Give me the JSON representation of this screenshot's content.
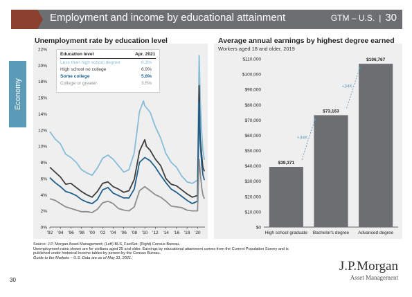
{
  "header": {
    "title": "Employment and income by educational attainment",
    "guide": "GTM – U.S.",
    "separator": "|",
    "page": "30",
    "colors": {
      "bar": "#6d6e71",
      "chevron": "#8b3f2e"
    }
  },
  "side_tab": {
    "label": "Economy",
    "color": "#5b9bb8"
  },
  "left_chart": {
    "title": "Unemployment rate by education level"
  },
  "right_chart": {
    "title": "Average annual earnings by highest degree earned",
    "subtitle": "Workers aged 18 and older, 2019"
  },
  "legend": {
    "header_label": "Education level",
    "header_value": "Apr. 2021",
    "rows": [
      {
        "label": "Less than high school degree",
        "value": "8.3%",
        "color": "#87bcd8"
      },
      {
        "label": "High school no college",
        "value": "6.9%",
        "color": "#3c3c3c"
      },
      {
        "label": "Some college",
        "value": "5.8%",
        "color": "#1f5f8b"
      },
      {
        "label": "College or greater",
        "value": "3.5%",
        "color": "#8c8c8c"
      }
    ]
  },
  "chart_data": [
    {
      "type": "line",
      "title": "Unemployment rate by education level",
      "ylim": [
        0,
        22
      ],
      "yticks": [
        "0%",
        "2%",
        "4%",
        "6%",
        "8%",
        "10%",
        "12%",
        "14%",
        "16%",
        "18%",
        "20%",
        "22%"
      ],
      "xlim": [
        1992,
        2021.4
      ],
      "xticks": [
        "'92",
        "'94",
        "'96",
        "'98",
        "'00",
        "'02",
        "'04",
        "'06",
        "'08",
        "'10",
        "'12",
        "'14",
        "'16",
        "'18",
        "'20"
      ],
      "grid": false,
      "series": [
        {
          "name": "Less than high school degree",
          "color": "#87bcd8",
          "points": [
            [
              1992,
              11.8
            ],
            [
              1993,
              10.9
            ],
            [
              1994,
              10.3
            ],
            [
              1995,
              9.0
            ],
            [
              1996,
              8.6
            ],
            [
              1997,
              8.0
            ],
            [
              1998,
              7.1
            ],
            [
              1999,
              6.7
            ],
            [
              2000,
              6.4
            ],
            [
              2001,
              7.3
            ],
            [
              2002,
              8.5
            ],
            [
              2003,
              8.9
            ],
            [
              2004,
              8.4
            ],
            [
              2005,
              7.6
            ],
            [
              2006,
              6.8
            ],
            [
              2007,
              7.1
            ],
            [
              2008,
              9.2
            ],
            [
              2009,
              14.3
            ],
            [
              2009.75,
              15.6
            ],
            [
              2010,
              15.0
            ],
            [
              2011,
              14.2
            ],
            [
              2012,
              12.4
            ],
            [
              2013,
              11.0
            ],
            [
              2014,
              9.1
            ],
            [
              2015,
              8.0
            ],
            [
              2016,
              7.4
            ],
            [
              2017,
              6.3
            ],
            [
              2018,
              5.6
            ],
            [
              2019,
              5.4
            ],
            [
              2020.0,
              5.8
            ],
            [
              2020.3,
              21.2
            ],
            [
              2020.5,
              16.0
            ],
            [
              2020.8,
              11.5
            ],
            [
              2021.0,
              9.5
            ],
            [
              2021.3,
              8.3
            ]
          ]
        },
        {
          "name": "High school no college",
          "color": "#3c3c3c",
          "points": [
            [
              1992,
              7.4
            ],
            [
              1993,
              6.8
            ],
            [
              1994,
              6.2
            ],
            [
              1995,
              5.3
            ],
            [
              1996,
              5.4
            ],
            [
              1997,
              4.9
            ],
            [
              1998,
              4.4
            ],
            [
              1999,
              4.0
            ],
            [
              2000,
              3.7
            ],
            [
              2001,
              4.4
            ],
            [
              2002,
              5.4
            ],
            [
              2003,
              5.6
            ],
            [
              2004,
              5.0
            ],
            [
              2005,
              4.7
            ],
            [
              2006,
              4.3
            ],
            [
              2007,
              4.5
            ],
            [
              2008,
              5.9
            ],
            [
              2009,
              9.4
            ],
            [
              2010,
              10.8
            ],
            [
              2010.3,
              10.0
            ],
            [
              2011,
              9.5
            ],
            [
              2012,
              8.4
            ],
            [
              2013,
              7.6
            ],
            [
              2014,
              6.0
            ],
            [
              2015,
              5.3
            ],
            [
              2016,
              5.1
            ],
            [
              2017,
              4.6
            ],
            [
              2018,
              4.1
            ],
            [
              2019,
              3.7
            ],
            [
              2020.0,
              3.9
            ],
            [
              2020.3,
              17.5
            ],
            [
              2020.5,
              11.0
            ],
            [
              2020.8,
              8.8
            ],
            [
              2021.0,
              7.4
            ],
            [
              2021.3,
              6.9
            ]
          ]
        },
        {
          "name": "Some college",
          "color": "#1f5f8b",
          "points": [
            [
              1992,
              6.1
            ],
            [
              1993,
              5.5
            ],
            [
              1994,
              5.0
            ],
            [
              1995,
              4.4
            ],
            [
              1996,
              4.2
            ],
            [
              1997,
              3.9
            ],
            [
              1998,
              3.4
            ],
            [
              1999,
              3.1
            ],
            [
              2000,
              2.9
            ],
            [
              2001,
              3.4
            ],
            [
              2002,
              4.6
            ],
            [
              2003,
              4.9
            ],
            [
              2004,
              4.2
            ],
            [
              2005,
              3.9
            ],
            [
              2006,
              3.6
            ],
            [
              2007,
              3.6
            ],
            [
              2008,
              4.7
            ],
            [
              2009,
              8.0
            ],
            [
              2010,
              8.6
            ],
            [
              2011,
              8.2
            ],
            [
              2012,
              7.4
            ],
            [
              2013,
              6.4
            ],
            [
              2014,
              5.5
            ],
            [
              2015,
              4.7
            ],
            [
              2016,
              4.3
            ],
            [
              2017,
              3.8
            ],
            [
              2018,
              3.3
            ],
            [
              2019,
              2.9
            ],
            [
              2020.0,
              3.2
            ],
            [
              2020.3,
              15.4
            ],
            [
              2020.5,
              10.5
            ],
            [
              2020.8,
              7.7
            ],
            [
              2021.0,
              6.5
            ],
            [
              2021.3,
              5.8
            ]
          ]
        },
        {
          "name": "College or greater",
          "color": "#8c8c8c",
          "points": [
            [
              1992,
              3.5
            ],
            [
              1993,
              3.3
            ],
            [
              1994,
              2.9
            ],
            [
              1995,
              2.5
            ],
            [
              1996,
              2.3
            ],
            [
              1997,
              2.1
            ],
            [
              1998,
              1.9
            ],
            [
              1999,
              1.9
            ],
            [
              2000,
              1.8
            ],
            [
              2001,
              2.2
            ],
            [
              2002,
              3.0
            ],
            [
              2003,
              3.2
            ],
            [
              2004,
              2.9
            ],
            [
              2005,
              2.3
            ],
            [
              2006,
              2.1
            ],
            [
              2007,
              2.0
            ],
            [
              2008,
              2.5
            ],
            [
              2009,
              4.5
            ],
            [
              2010,
              5.0
            ],
            [
              2011,
              4.5
            ],
            [
              2012,
              4.0
            ],
            [
              2013,
              3.7
            ],
            [
              2014,
              3.2
            ],
            [
              2015,
              2.6
            ],
            [
              2016,
              2.5
            ],
            [
              2017,
              2.4
            ],
            [
              2018,
              2.1
            ],
            [
              2019,
              2.0
            ],
            [
              2020.0,
              2.0
            ],
            [
              2020.3,
              8.4
            ],
            [
              2020.5,
              6.8
            ],
            [
              2020.8,
              4.8
            ],
            [
              2021.0,
              4.0
            ],
            [
              2021.3,
              3.5
            ]
          ]
        }
      ]
    },
    {
      "type": "bar",
      "title": "Average annual earnings by highest degree earned",
      "subtitle": "Workers aged 18 and older, 2019",
      "categories": [
        "High school graduate",
        "Bachelor's degree",
        "Advanced degree"
      ],
      "values": [
        39371,
        73163,
        106767
      ],
      "data_labels": [
        "$39,371",
        "$73,163",
        "$106,767"
      ],
      "ylim": [
        0,
        110000
      ],
      "yticks": [
        "$0",
        "$10,000",
        "$20,000",
        "$30,000",
        "$40,000",
        "$50,000",
        "$60,000",
        "$70,000",
        "$80,000",
        "$90,000",
        "$100,000",
        "$110,000"
      ],
      "bar_color": "#6d6e71",
      "annotations": [
        "+34K",
        "+34K"
      ],
      "annotation_color": "#5b9bb8"
    }
  ],
  "footer": {
    "lines": [
      "Source: J.P. Morgan Asset Management; (Left) BLS, FactSet; (Right) Census Bureau.",
      "Unemployment rates shown are for civilians aged 25 and older. Earnings by educational attainment comes from the Current Population Survey and is",
      "published under historical income tables by person by the Census Bureau.",
      "Guide to the Markets – U.S. Data are as of May 31, 2021."
    ]
  },
  "page_number": "30",
  "logo": {
    "main": "J.P.Morgan",
    "sub": "Asset Management"
  }
}
